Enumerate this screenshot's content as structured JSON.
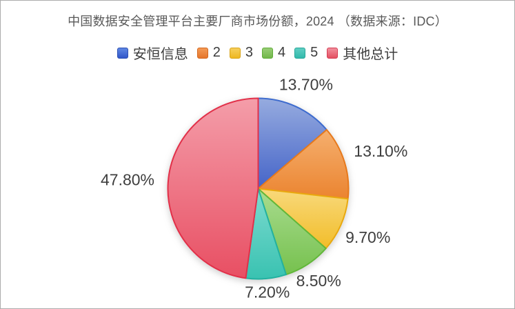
{
  "title": "中国数据安全管理平台主要厂商市场份额，2024 （数据来源：IDC）",
  "chart_data": {
    "type": "pie",
    "title": "中国数据安全管理平台主要厂商市场份额，2024",
    "source_note": "（数据来源：IDC）",
    "legend_position": "top",
    "start_angle_deg": 0,
    "direction": "clockwise",
    "unit": "%",
    "series": [
      {
        "label": "安恒信息",
        "value": 13.7,
        "display": "13.70%",
        "fill_light": "#96abdf",
        "fill_dark": "#4564c8",
        "stroke": "#3d6bce",
        "swatch_light": "#5e87e3",
        "swatch_dark": "#3156c9",
        "swatch_border": "#2b4fb2"
      },
      {
        "label": "2",
        "value": 13.1,
        "display": "13.10%",
        "fill_light": "#f5af6e",
        "fill_dark": "#eb8430",
        "stroke": "#e7791b",
        "swatch_light": "#f49a55",
        "swatch_dark": "#e6762b",
        "swatch_border": "#d4661c"
      },
      {
        "label": "3",
        "value": 9.7,
        "display": "9.70%",
        "fill_light": "#f8d97c",
        "fill_dark": "#f2bd29",
        "stroke": "#e9a90e",
        "swatch_light": "#f6cf5c",
        "swatch_dark": "#eeb822",
        "swatch_border": "#d9a313"
      },
      {
        "label": "4",
        "value": 8.5,
        "display": "8.50%",
        "fill_light": "#a9dc90",
        "fill_dark": "#76c14e",
        "stroke": "#61b739",
        "swatch_light": "#98cd76",
        "swatch_dark": "#72b84a",
        "swatch_border": "#5fac38"
      },
      {
        "label": "5",
        "value": 7.2,
        "display": "7.20%",
        "fill_light": "#7edbd0",
        "fill_dark": "#39c2b1",
        "stroke": "#23b1a0",
        "swatch_light": "#60cec3",
        "swatch_dark": "#32baac",
        "swatch_border": "#24a698"
      },
      {
        "label": "其他总计",
        "value": 47.8,
        "display": "47.80%",
        "fill_light": "#f49da9",
        "fill_dark": "#e84f63",
        "stroke": "#e23049",
        "swatch_light": "#f18f9c",
        "swatch_dark": "#e45062",
        "swatch_border": "#d53b52"
      }
    ]
  },
  "colors": {
    "title_text": "#595959",
    "label_text": "#3e3e3e",
    "legend_text": "#3c3c3c",
    "background": "#ffffff"
  }
}
